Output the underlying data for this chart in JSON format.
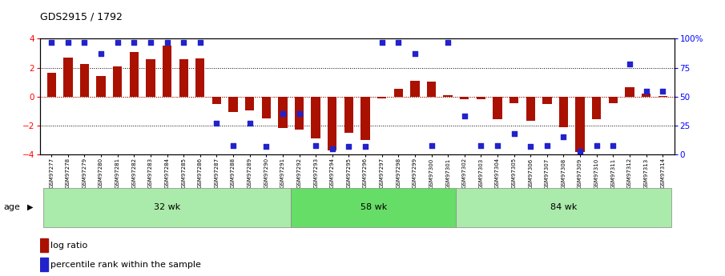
{
  "title": "GDS2915 / 1792",
  "samples": [
    "GSM97277",
    "GSM97278",
    "GSM97279",
    "GSM97280",
    "GSM97281",
    "GSM97282",
    "GSM97283",
    "GSM97284",
    "GSM97285",
    "GSM97286",
    "GSM97287",
    "GSM97288",
    "GSM97289",
    "GSM97290",
    "GSM97291",
    "GSM97292",
    "GSM97293",
    "GSM97294",
    "GSM97295",
    "GSM97296",
    "GSM97297",
    "GSM97298",
    "GSM97299",
    "GSM97300",
    "GSM97301",
    "GSM97302",
    "GSM97303",
    "GSM97304",
    "GSM97305",
    "GSM97306",
    "GSM97307",
    "GSM97308",
    "GSM97309",
    "GSM97310",
    "GSM97311",
    "GSM97312",
    "GSM97313",
    "GSM97314"
  ],
  "log_ratio": [
    1.65,
    2.7,
    2.25,
    1.4,
    2.1,
    3.1,
    2.6,
    3.5,
    2.6,
    2.65,
    -0.5,
    -1.05,
    -0.95,
    -1.5,
    -2.15,
    -2.25,
    -2.9,
    -3.7,
    -2.5,
    -3.0,
    -0.1,
    0.55,
    1.1,
    1.05,
    0.1,
    -0.2,
    -0.2,
    -1.55,
    -0.45,
    -1.65,
    -0.5,
    -2.1,
    -3.8,
    -1.55,
    -0.45,
    0.65,
    0.2,
    0.05
  ],
  "percentile": [
    97,
    97,
    97,
    87,
    97,
    97,
    97,
    97,
    97,
    97,
    27,
    8,
    27,
    7,
    35,
    35,
    8,
    5,
    7,
    7,
    97,
    97,
    87,
    8,
    97,
    33,
    8,
    8,
    18,
    7,
    8,
    15,
    3,
    8,
    8,
    78,
    55,
    55
  ],
  "groups": [
    {
      "label": "32 wk",
      "start": 0,
      "end": 15
    },
    {
      "label": "58 wk",
      "start": 15,
      "end": 25
    },
    {
      "label": "84 wk",
      "start": 25,
      "end": 38
    }
  ],
  "group_colors": [
    "#aaeaaa",
    "#66dd66",
    "#aaeaaa"
  ],
  "ylim": [
    -4,
    4
  ],
  "y2lim": [
    0,
    100
  ],
  "bar_color": "#aa1100",
  "dot_color": "#2222cc",
  "bg_color": "#ffffff",
  "age_label": "age",
  "legend_bar": "log ratio",
  "legend_dot": "percentile rank within the sample",
  "yticks_left": [
    -4,
    -2,
    0,
    2,
    4
  ],
  "yticks_right": [
    0,
    25,
    50,
    75,
    100
  ],
  "ytick_right_labels": [
    "0",
    "25",
    "50",
    "75",
    "100%"
  ]
}
